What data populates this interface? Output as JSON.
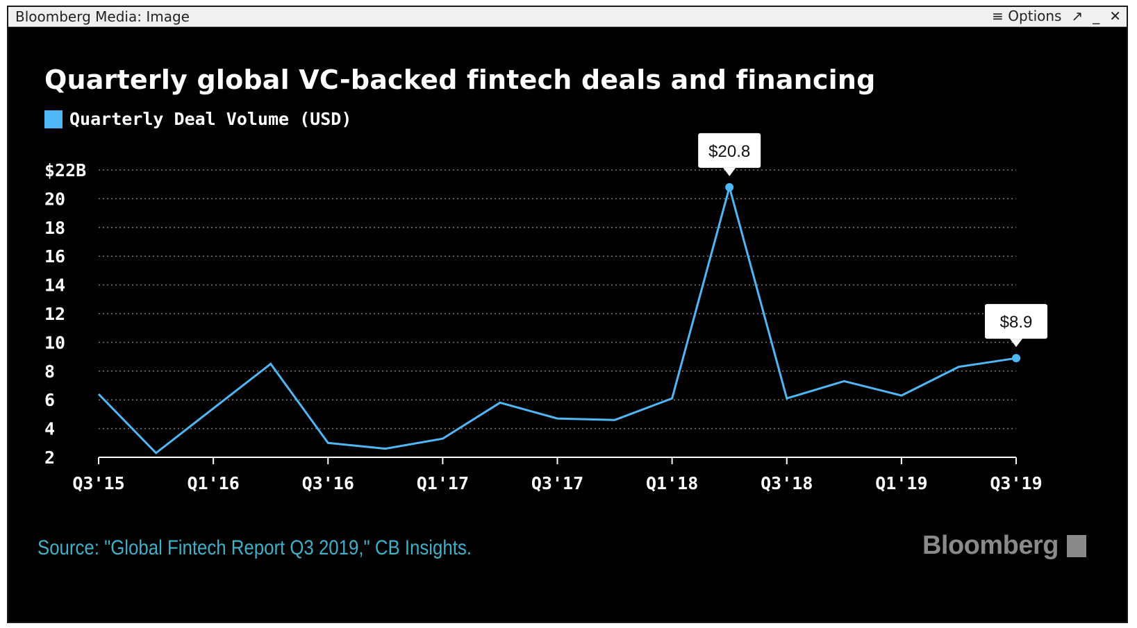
{
  "window": {
    "title": "Bloomberg Media: Image",
    "options_label": "≡ Options",
    "popout_glyph": "↗",
    "minimize_glyph": "_",
    "close_glyph": "✕"
  },
  "colors": {
    "background": "#000000",
    "line": "#4fb7f5",
    "text": "#ffffff",
    "source": "#3fb0c9",
    "brand": "#8a8a8a"
  },
  "footer": {
    "source": "Source: \"Global Fintech Report Q3 2019,\" CB Insights.",
    "brand": "Bloomberg",
    "brand_icon": "bloomberg-terminal-icon"
  },
  "chart_data": {
    "type": "line",
    "title": "Quarterly global VC-backed fintech deals and financing",
    "grid": true,
    "legend_position": "top-left",
    "ylim": [
      2,
      22
    ],
    "y_ticks": [
      {
        "value": 22,
        "label": "$22B"
      },
      {
        "value": 20,
        "label": "20"
      },
      {
        "value": 18,
        "label": "18"
      },
      {
        "value": 16,
        "label": "16"
      },
      {
        "value": 14,
        "label": "14"
      },
      {
        "value": 12,
        "label": "12"
      },
      {
        "value": 10,
        "label": "10"
      },
      {
        "value": 8,
        "label": "8"
      },
      {
        "value": 6,
        "label": "6"
      },
      {
        "value": 4,
        "label": "4"
      },
      {
        "value": 2,
        "label": "2"
      }
    ],
    "x": [
      "Q3'15",
      "Q4'15",
      "Q1'16",
      "Q2'16",
      "Q3'16",
      "Q4'16",
      "Q1'17",
      "Q2'17",
      "Q3'17",
      "Q4'17",
      "Q1'18",
      "Q2'18",
      "Q3'18",
      "Q4'18",
      "Q1'19",
      "Q2'19",
      "Q3'19"
    ],
    "x_tick_labels": [
      "Q3'15",
      "Q1'16",
      "Q3'16",
      "Q1'17",
      "Q3'17",
      "Q1'18",
      "Q3'18",
      "Q1'19",
      "Q3'19"
    ],
    "series": [
      {
        "name": "Quarterly Deal Volume (USD)",
        "values": [
          6.4,
          2.3,
          5.4,
          8.5,
          3.0,
          2.6,
          3.3,
          5.8,
          4.7,
          4.6,
          6.1,
          20.8,
          6.1,
          7.3,
          6.3,
          8.3,
          8.9
        ]
      }
    ],
    "annotations": [
      {
        "index": 11,
        "label": "$20.8"
      },
      {
        "index": 16,
        "label": "$8.9"
      }
    ]
  }
}
